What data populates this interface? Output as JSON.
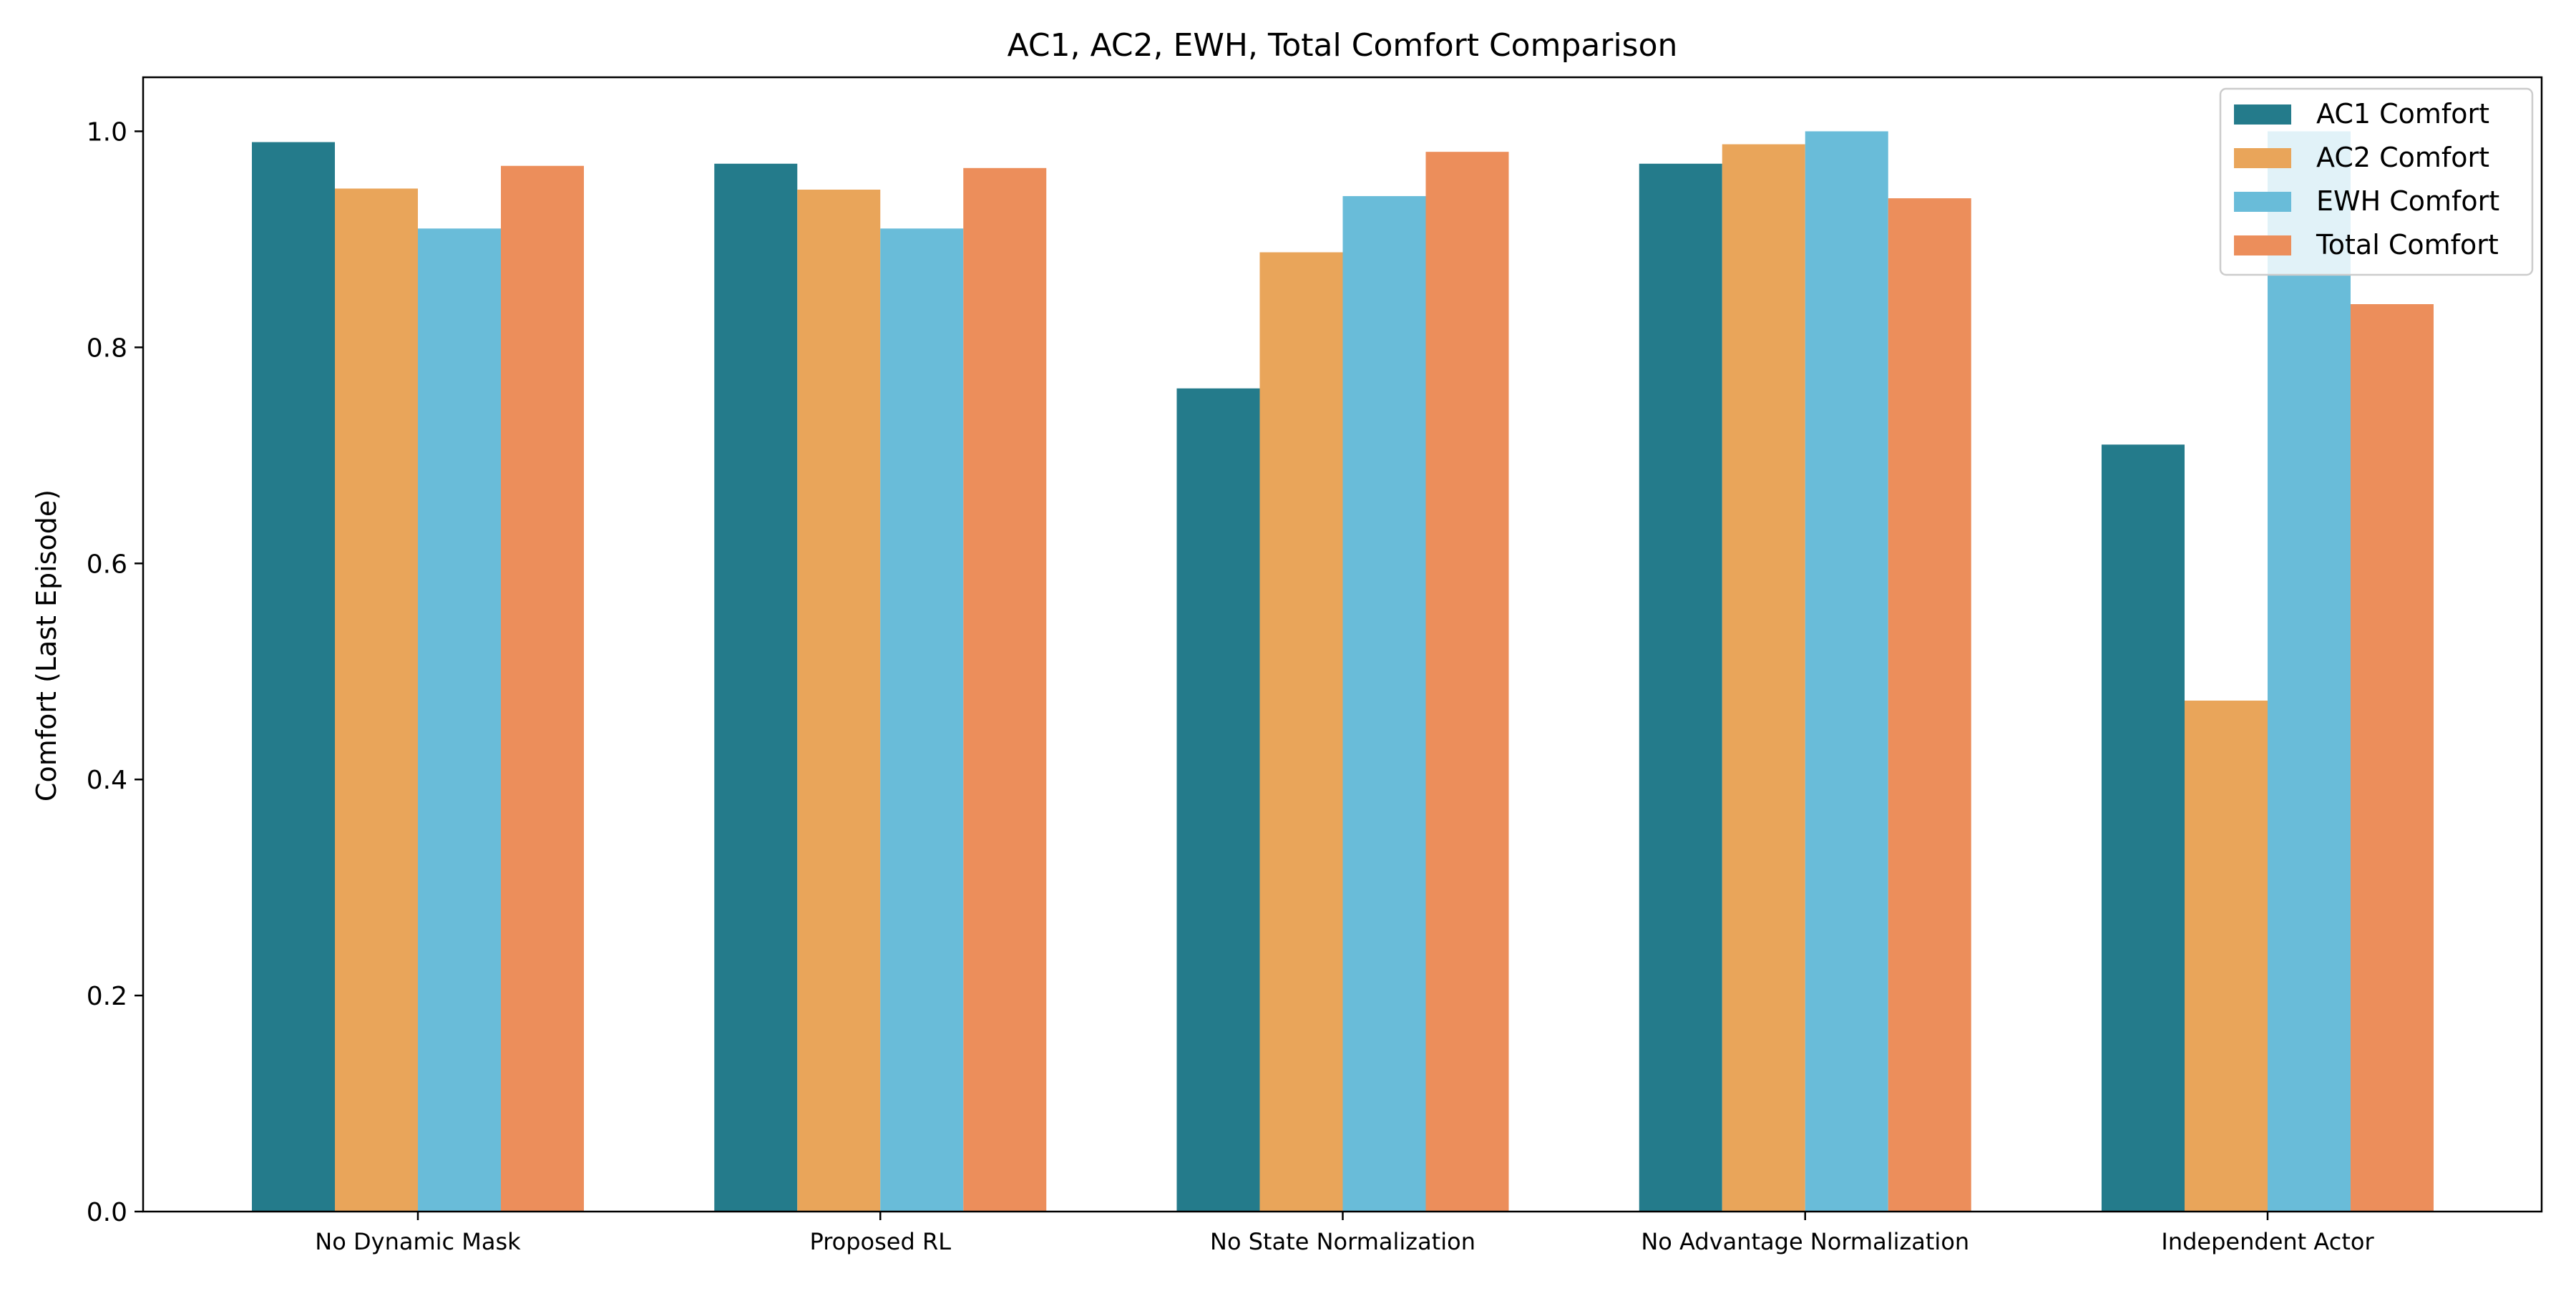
{
  "chart_data": {
    "type": "bar",
    "title": "AC1, AC2, EWH, Total Comfort Comparison",
    "xlabel": "",
    "ylabel": "Comfort (Last Episode)",
    "ylim": [
      0,
      1.05
    ],
    "yticks": [
      0.0,
      0.2,
      0.4,
      0.6,
      0.8,
      1.0
    ],
    "ytick_labels": [
      "0.0",
      "0.2",
      "0.4",
      "0.6",
      "0.8",
      "1.0"
    ],
    "grid": false,
    "legend": "top-right",
    "categories": [
      "No Dynamic Mask",
      "Proposed RL",
      "No State Normalization",
      "No Advantage Normalization",
      "Independent Actor"
    ],
    "series": [
      {
        "name": "AC1 Comfort",
        "color": "#247b8b",
        "values": [
          0.99,
          0.97,
          0.762,
          0.97,
          0.71
        ]
      },
      {
        "name": "AC2 Comfort",
        "color": "#e9a55a",
        "values": [
          0.947,
          0.946,
          0.888,
          0.988,
          0.473
        ]
      },
      {
        "name": "EWH Comfort",
        "color": "#69bcd9",
        "values": [
          0.91,
          0.91,
          0.94,
          1.0,
          1.0
        ]
      },
      {
        "name": "Total Comfort",
        "color": "#ec8e5b",
        "values": [
          0.968,
          0.966,
          0.981,
          0.938,
          0.84
        ]
      }
    ]
  }
}
